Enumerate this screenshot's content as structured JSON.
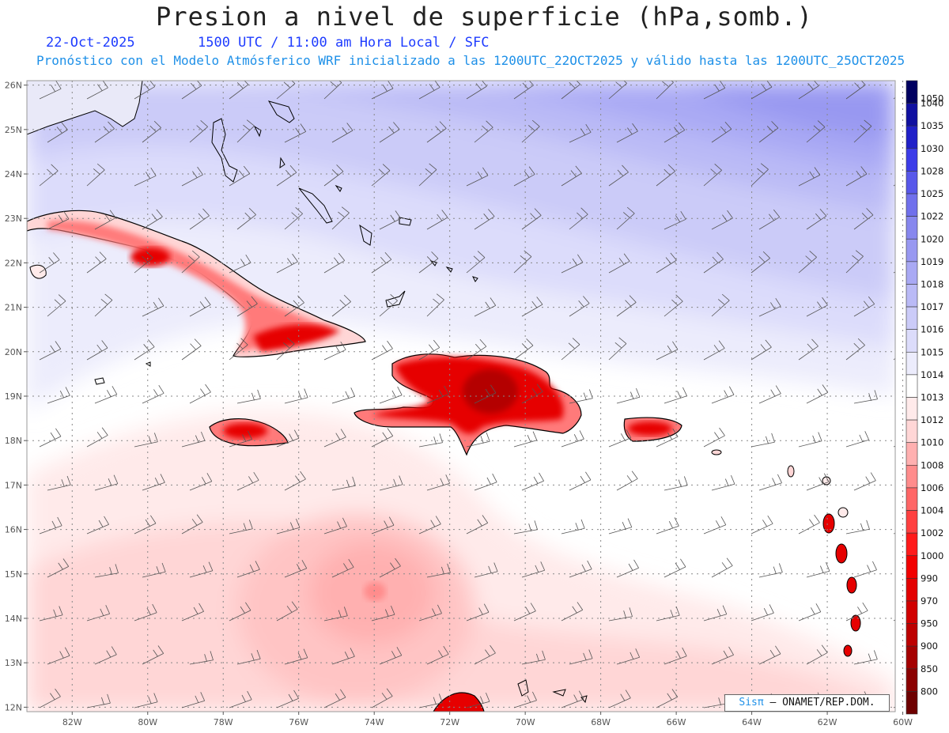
{
  "title": "Presion a nivel de superficie (hPa,somb.)",
  "date": "22-Oct-2025",
  "time_label": "1500 UTC / 11:00 am Hora Local / SFC",
  "model_label": "Pronóstico con el Modelo Atmósferico WRF inicializado a las 1200UTC_22OCT2025 y válido hasta las  1200UTC_25OCT2025",
  "credit": {
    "brand": "Sisπ",
    "text": "– ONAMET/REP.DOM."
  },
  "map": {
    "lat_labels": [
      "26N",
      "25N",
      "24N",
      "23N",
      "22N",
      "21N",
      "20N",
      "19N",
      "18N",
      "17N",
      "16N",
      "15N",
      "14N",
      "13N",
      "12N"
    ],
    "lon_labels": [
      "82W",
      "80W",
      "78W",
      "76W",
      "74W",
      "72W",
      "70W",
      "68W",
      "66W",
      "64W",
      "62W",
      "60W"
    ],
    "lon_range": [
      -83.2,
      -60.2
    ],
    "lat_range": [
      11.9,
      26.1
    ]
  },
  "legend": {
    "levels": [
      "800",
      "850",
      "900",
      "950",
      "970",
      "990",
      "1000",
      "1002",
      "1004",
      "1006",
      "1008",
      "1010",
      "1012",
      "1013",
      "1014",
      "1015",
      "1016",
      "1017",
      "1018",
      "1019",
      "1020",
      "1022",
      "1025",
      "1028",
      "1030",
      "1035",
      "1040",
      "1050"
    ],
    "colors": [
      "#6e0000",
      "#8b0000",
      "#a50000",
      "#bd0000",
      "#d10000",
      "#e30000",
      "#f20000",
      "#ff1a1a",
      "#ff4040",
      "#ff6666",
      "#ff8c8c",
      "#ffb0b0",
      "#ffd6d6",
      "#ffeaea",
      "#ffffff",
      "#ececfc",
      "#dcdcfb",
      "#cbcbf8",
      "#babaf6",
      "#a9a9f4",
      "#9898f1",
      "#8787ee",
      "#7070ec",
      "#5858ea",
      "#3c3ce8",
      "#2020c8",
      "#1010a0",
      "#000060"
    ]
  },
  "colors": {
    "land_low": "#e60000",
    "high_pressure": "#8080f0"
  }
}
